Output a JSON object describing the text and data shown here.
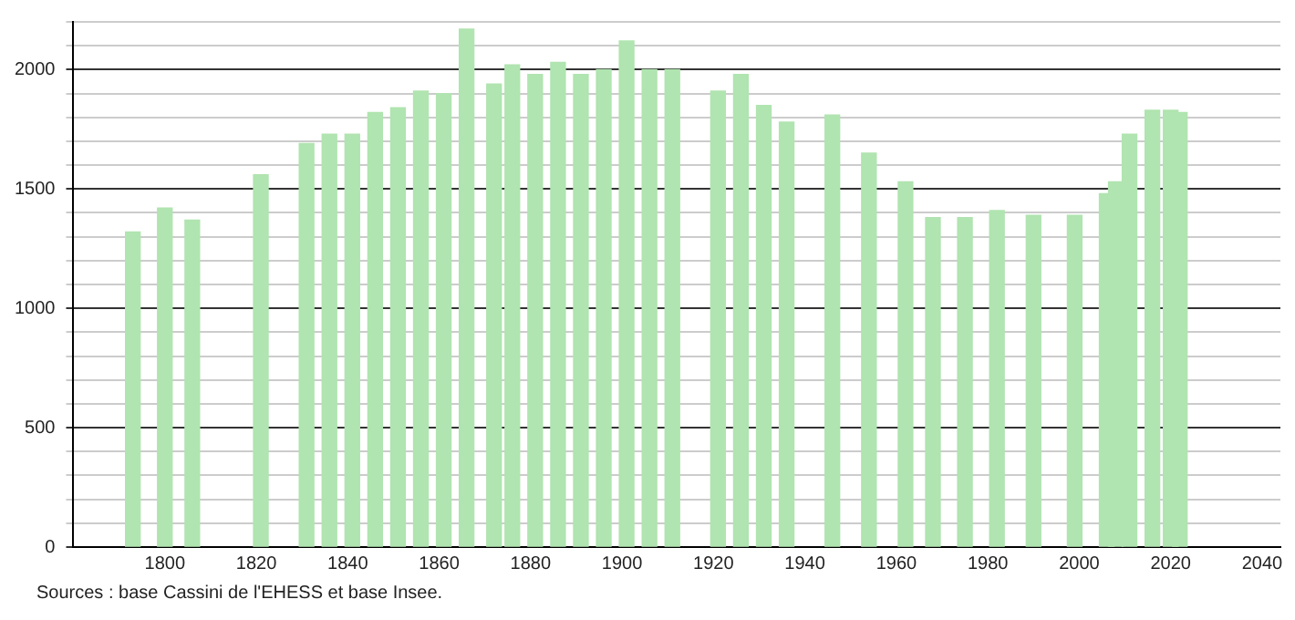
{
  "chart_data": {
    "type": "bar",
    "x": [
      1793,
      1800,
      1806,
      1821,
      1831,
      1836,
      1841,
      1846,
      1851,
      1856,
      1861,
      1866,
      1872,
      1876,
      1881,
      1886,
      1891,
      1896,
      1901,
      1906,
      1911,
      1921,
      1926,
      1931,
      1936,
      1946,
      1954,
      1962,
      1968,
      1975,
      1982,
      1990,
      1999,
      2006,
      2008,
      2011,
      2016,
      2020,
      2022
    ],
    "values": [
      1320,
      1420,
      1370,
      1560,
      1690,
      1730,
      1730,
      1820,
      1840,
      1910,
      1900,
      2170,
      1940,
      2020,
      1980,
      2030,
      1980,
      2000,
      2120,
      2000,
      2000,
      1910,
      1980,
      1850,
      1780,
      1810,
      1650,
      1530,
      1380,
      1380,
      1410,
      1390,
      1390,
      1480,
      1530,
      1730,
      1830,
      1830,
      1820
    ],
    "color": "#b0e4b0",
    "xlim": [
      1780,
      2044
    ],
    "xticks": [
      1800,
      1820,
      1840,
      1860,
      1880,
      1900,
      1920,
      1940,
      1960,
      1980,
      2000,
      2020,
      2040
    ],
    "ylim": [
      0,
      2200
    ],
    "yticks": [
      0,
      {
        "value": 100,
        "label": null
      },
      {
        "value": 200,
        "label": null
      },
      {
        "value": 300,
        "label": null
      },
      {
        "value": 400,
        "label": null
      },
      500,
      {
        "value": 600,
        "label": null
      },
      {
        "value": 700,
        "label": null
      },
      {
        "value": 800,
        "label": null
      },
      {
        "value": 900,
        "label": null
      },
      1000,
      {
        "value": 1100,
        "label": null
      },
      {
        "value": 1200,
        "label": null
      },
      {
        "value": 1300,
        "label": null
      },
      {
        "value": 1400,
        "label": null
      },
      1500,
      {
        "value": 1600,
        "label": null
      },
      {
        "value": 1700,
        "label": null
      },
      {
        "value": 1800,
        "label": null
      },
      {
        "value": 1900,
        "label": null
      },
      2000,
      {
        "value": 2100,
        "label": null
      },
      {
        "value": 2200,
        "label": null
      }
    ],
    "grid": "y",
    "annotations": [
      "Sources : base Cassini de l'EHESS et base Insee."
    ]
  }
}
